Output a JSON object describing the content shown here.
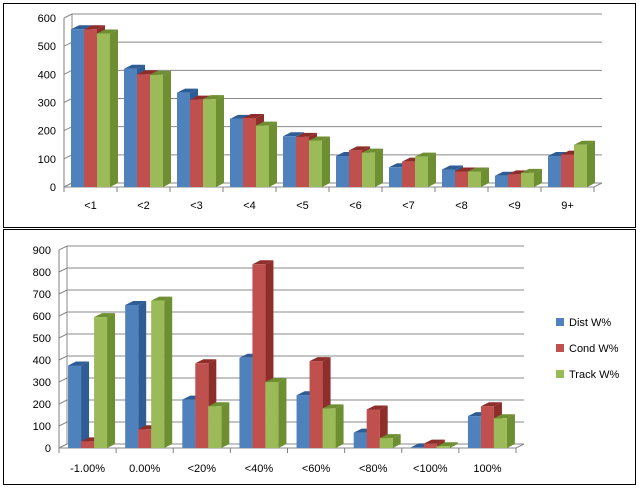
{
  "chart_data": [
    {
      "type": "bar",
      "title": "",
      "xlabel": "",
      "ylabel": "",
      "ylim": [
        0,
        600
      ],
      "yticks": [
        0,
        100,
        200,
        300,
        400,
        500,
        600
      ],
      "grid": true,
      "legend": "none",
      "categories": [
        "<1",
        "<2",
        "<3",
        "<4",
        "<5",
        "<6",
        "<7",
        "<8",
        "<9",
        "9+"
      ],
      "series": [
        {
          "values": [
            560,
            420,
            335,
            242,
            180,
            110,
            70,
            62,
            40,
            110
          ]
        },
        {
          "values": [
            560,
            400,
            310,
            245,
            178,
            130,
            90,
            55,
            45,
            115
          ]
        },
        {
          "values": [
            545,
            398,
            312,
            218,
            165,
            122,
            108,
            55,
            50,
            150
          ]
        }
      ]
    },
    {
      "type": "bar",
      "title": "",
      "xlabel": "",
      "ylabel": "",
      "ylim": [
        0,
        900
      ],
      "yticks": [
        0,
        100,
        200,
        300,
        400,
        500,
        600,
        700,
        800,
        900
      ],
      "grid": true,
      "legend": "right",
      "categories": [
        "-1.00%",
        "0.00%",
        "<20%",
        "<40%",
        "<60%",
        "<80%",
        "<100%",
        "100%"
      ],
      "series": [
        {
          "name": "Dist W%",
          "values": [
            375,
            650,
            220,
            410,
            240,
            70,
            3,
            145
          ]
        },
        {
          "name": "Cond W%",
          "values": [
            30,
            85,
            385,
            835,
            395,
            175,
            20,
            190
          ]
        },
        {
          "name": "Track W%",
          "values": [
            595,
            670,
            190,
            300,
            180,
            45,
            8,
            135
          ]
        }
      ]
    }
  ],
  "colors": {
    "series": [
      "#4F81BD",
      "#C0504D",
      "#9BBB59"
    ],
    "series_dark": [
      "#2E5C94",
      "#8E2E2B",
      "#6D8E31"
    ],
    "grid": "#898989",
    "axis": "#7f7f7f"
  }
}
